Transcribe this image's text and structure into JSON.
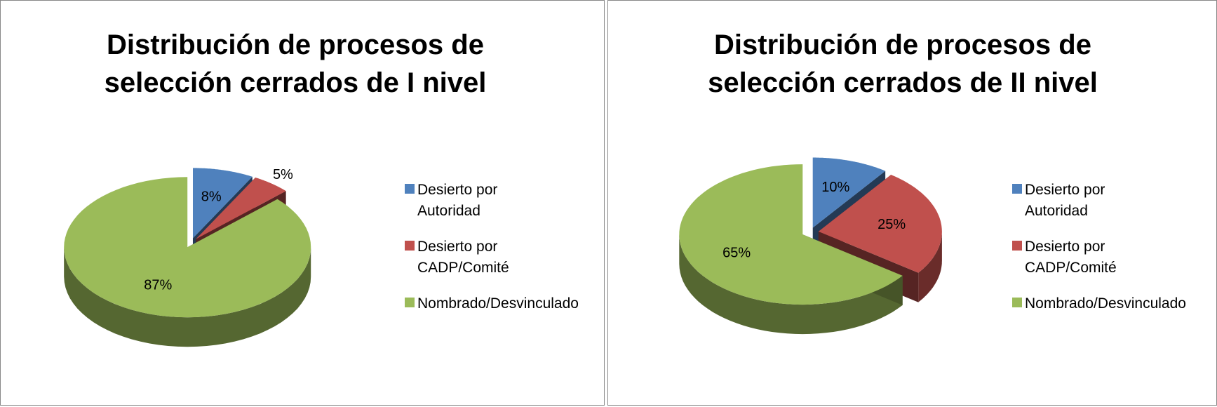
{
  "chart_data": [
    {
      "type": "pie",
      "title": "Distribución de procesos de selección cerrados de I nivel",
      "categories": [
        "Desierto por Autoridad",
        "Desierto por CADP/Comité",
        "Nombrado/Desvinculado"
      ],
      "values": [
        8,
        5,
        87
      ],
      "value_labels": [
        "8%",
        "5%",
        "87%"
      ],
      "colors": [
        "#4f81bd",
        "#c0504d",
        "#9bbb59"
      ],
      "legend": "right"
    },
    {
      "type": "pie",
      "title": "Distribución de procesos de selección cerrados de II nivel",
      "categories": [
        "Desierto por Autoridad",
        "Desierto por CADP/Comité",
        "Nombrado/Desvinculado"
      ],
      "values": [
        10,
        25,
        65
      ],
      "value_labels": [
        "10%",
        "25%",
        "65%"
      ],
      "colors": [
        "#4f81bd",
        "#c0504d",
        "#9bbb59"
      ],
      "legend": "right"
    }
  ]
}
